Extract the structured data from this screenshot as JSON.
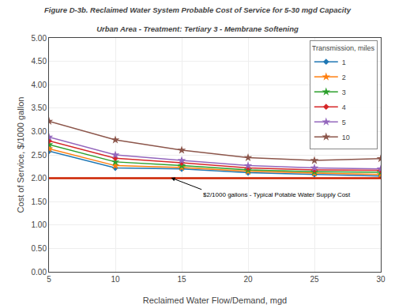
{
  "chart_data": {
    "type": "line",
    "title": "Figure D-3b. Reclaimed Water System Probable Cost of Service for 5-30 mgd Capacity",
    "subtitle": "Urban Area - Treatment: Tertiary 3 - Membrane Softening",
    "x_label": "Reclaimed Water Flow/Demand, mgd",
    "y_label": "Cost of Service, $/1000 gallon",
    "x": [
      5,
      10,
      15,
      20,
      25,
      30
    ],
    "xlim": [
      5,
      30
    ],
    "ylim": [
      0.0,
      5.0
    ],
    "xticks": [
      5,
      10,
      15,
      20,
      25,
      30
    ],
    "yticks": [
      {
        "value": 0.0,
        "label": "0.00"
      },
      {
        "value": 0.5,
        "label": "0.50"
      },
      {
        "value": 1.0,
        "label": "1.00"
      },
      {
        "value": 1.5,
        "label": "1.50"
      },
      {
        "value": 2.0,
        "label": "2.00"
      },
      {
        "value": 2.5,
        "label": "2.50"
      },
      {
        "value": 3.0,
        "label": "3.00"
      },
      {
        "value": 3.5,
        "label": "3.50"
      },
      {
        "value": 4.0,
        "label": "4.00"
      },
      {
        "value": 4.5,
        "label": "4.50"
      },
      {
        "value": 5.0,
        "label": "5.00"
      }
    ],
    "grid": true,
    "legend": "upper right",
    "legend_title": "Transmission, miles",
    "series": [
      {
        "name": "1",
        "marker": "diamond",
        "values": [
          2.58,
          2.22,
          2.2,
          2.12,
          2.08,
          2.05
        ]
      },
      {
        "name": "2",
        "marker": "star",
        "values": [
          2.63,
          2.27,
          2.23,
          2.15,
          2.11,
          2.08
        ]
      },
      {
        "name": "3",
        "marker": "star",
        "values": [
          2.72,
          2.35,
          2.27,
          2.18,
          2.14,
          2.13
        ]
      },
      {
        "name": "4",
        "marker": "diamond",
        "values": [
          2.8,
          2.43,
          2.33,
          2.22,
          2.18,
          2.17
        ]
      },
      {
        "name": "5",
        "marker": "star",
        "values": [
          2.88,
          2.5,
          2.38,
          2.27,
          2.22,
          2.2
        ]
      },
      {
        "name": "10",
        "marker": "star",
        "values": [
          3.22,
          2.82,
          2.6,
          2.44,
          2.38,
          2.42
        ]
      }
    ],
    "reference_line": {
      "y": 2.0,
      "color": "#cc2200"
    },
    "annotations": [
      {
        "text": "$2/1000 gallons - Typical Potable Water Supply Cost",
        "x": 16.5,
        "y": 1.76,
        "arrow_x": 14.2,
        "arrow_y": 2.01
      }
    ]
  }
}
